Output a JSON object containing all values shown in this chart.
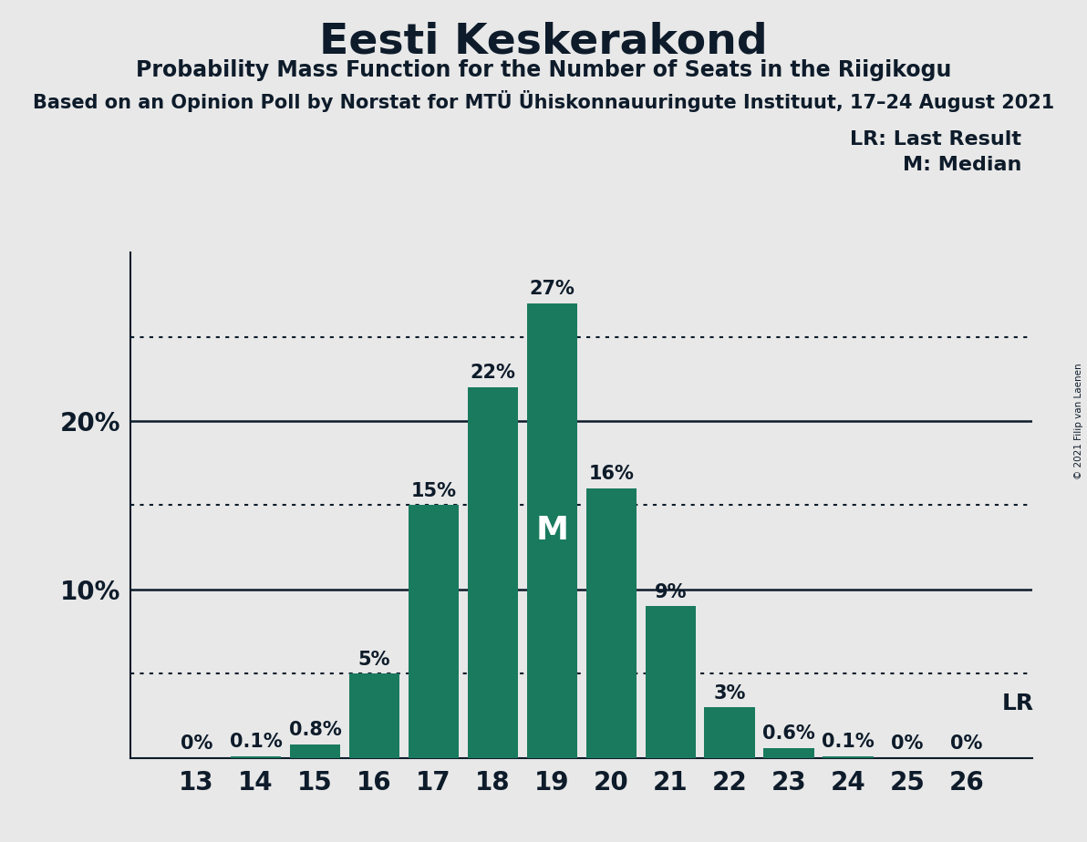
{
  "title": "Eesti Keskerakond",
  "subtitle": "Probability Mass Function for the Number of Seats in the Riigikogu",
  "source_line": "Based on an Opinion Poll by Norstat for MTÜ Ühiskonnauuringute Instituut, 17–24 August 2021",
  "copyright": "© 2021 Filip van Laenen",
  "categories": [
    13,
    14,
    15,
    16,
    17,
    18,
    19,
    20,
    21,
    22,
    23,
    24,
    25,
    26
  ],
  "values": [
    0.0,
    0.1,
    0.8,
    5.0,
    15.0,
    22.0,
    27.0,
    16.0,
    9.0,
    3.0,
    0.6,
    0.1,
    0.0,
    0.0
  ],
  "bar_color": "#1a7a5e",
  "background_color": "#e8e8e8",
  "text_color": "#0d1b2a",
  "median_bar_index": 6,
  "lr_bar_index": 13,
  "lr_label": "LR",
  "median_label": "M",
  "legend_lr": "LR: Last Result",
  "legend_m": "M: Median",
  "ylim": [
    0,
    30
  ],
  "dotted_lines": [
    5,
    15,
    25
  ],
  "solid_lines": [
    10,
    20
  ],
  "title_fontsize": 34,
  "subtitle_fontsize": 17,
  "source_fontsize": 15,
  "bar_label_fontsize": 15,
  "axis_label_fontsize": 20,
  "legend_fontsize": 16,
  "ytick_positions": [
    10,
    20
  ],
  "ytick_labels": [
    "10%",
    "20%"
  ]
}
